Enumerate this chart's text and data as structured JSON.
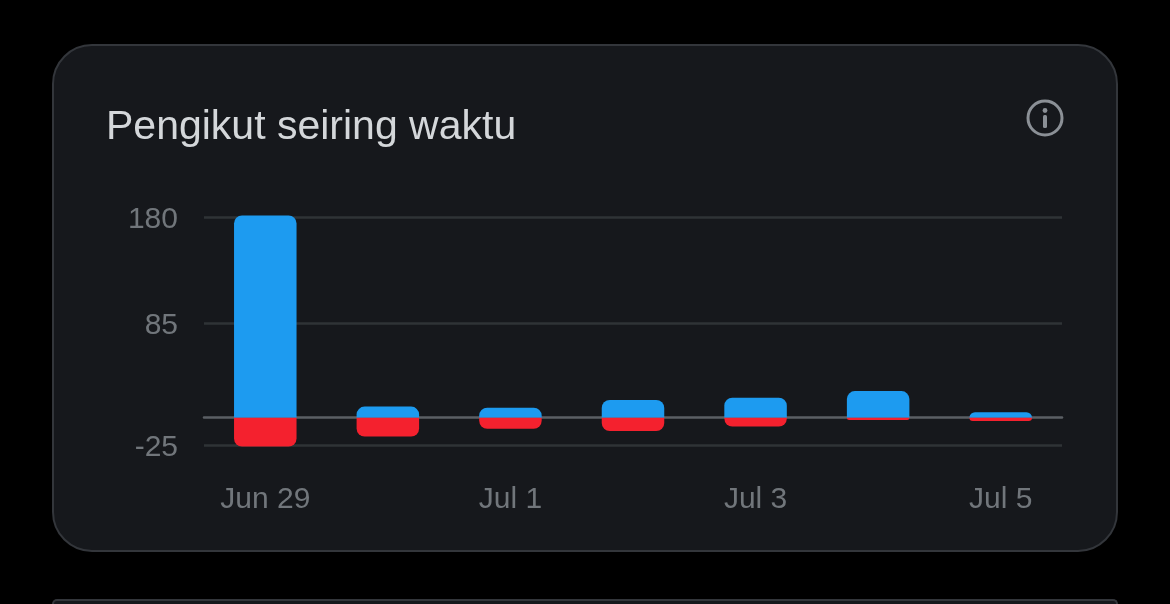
{
  "chart_data": {
    "type": "bar",
    "title": "Pengikut seiring waktu",
    "categories": [
      "Jun 29",
      null,
      "Jul 1",
      null,
      "Jul 3",
      null,
      "Jul 5"
    ],
    "stacked": true,
    "series": [
      {
        "color": "#1d9bf0",
        "values": [
          182,
          10,
          9,
          16,
          18,
          24,
          5
        ]
      },
      {
        "color": "#f4212e",
        "values": [
          -26,
          -17,
          -10,
          -12,
          -8,
          -2,
          -3
        ]
      }
    ],
    "ylim": [
      -27,
      183
    ],
    "yticks": [
      -25,
      85,
      180
    ],
    "grid": "y"
  }
}
